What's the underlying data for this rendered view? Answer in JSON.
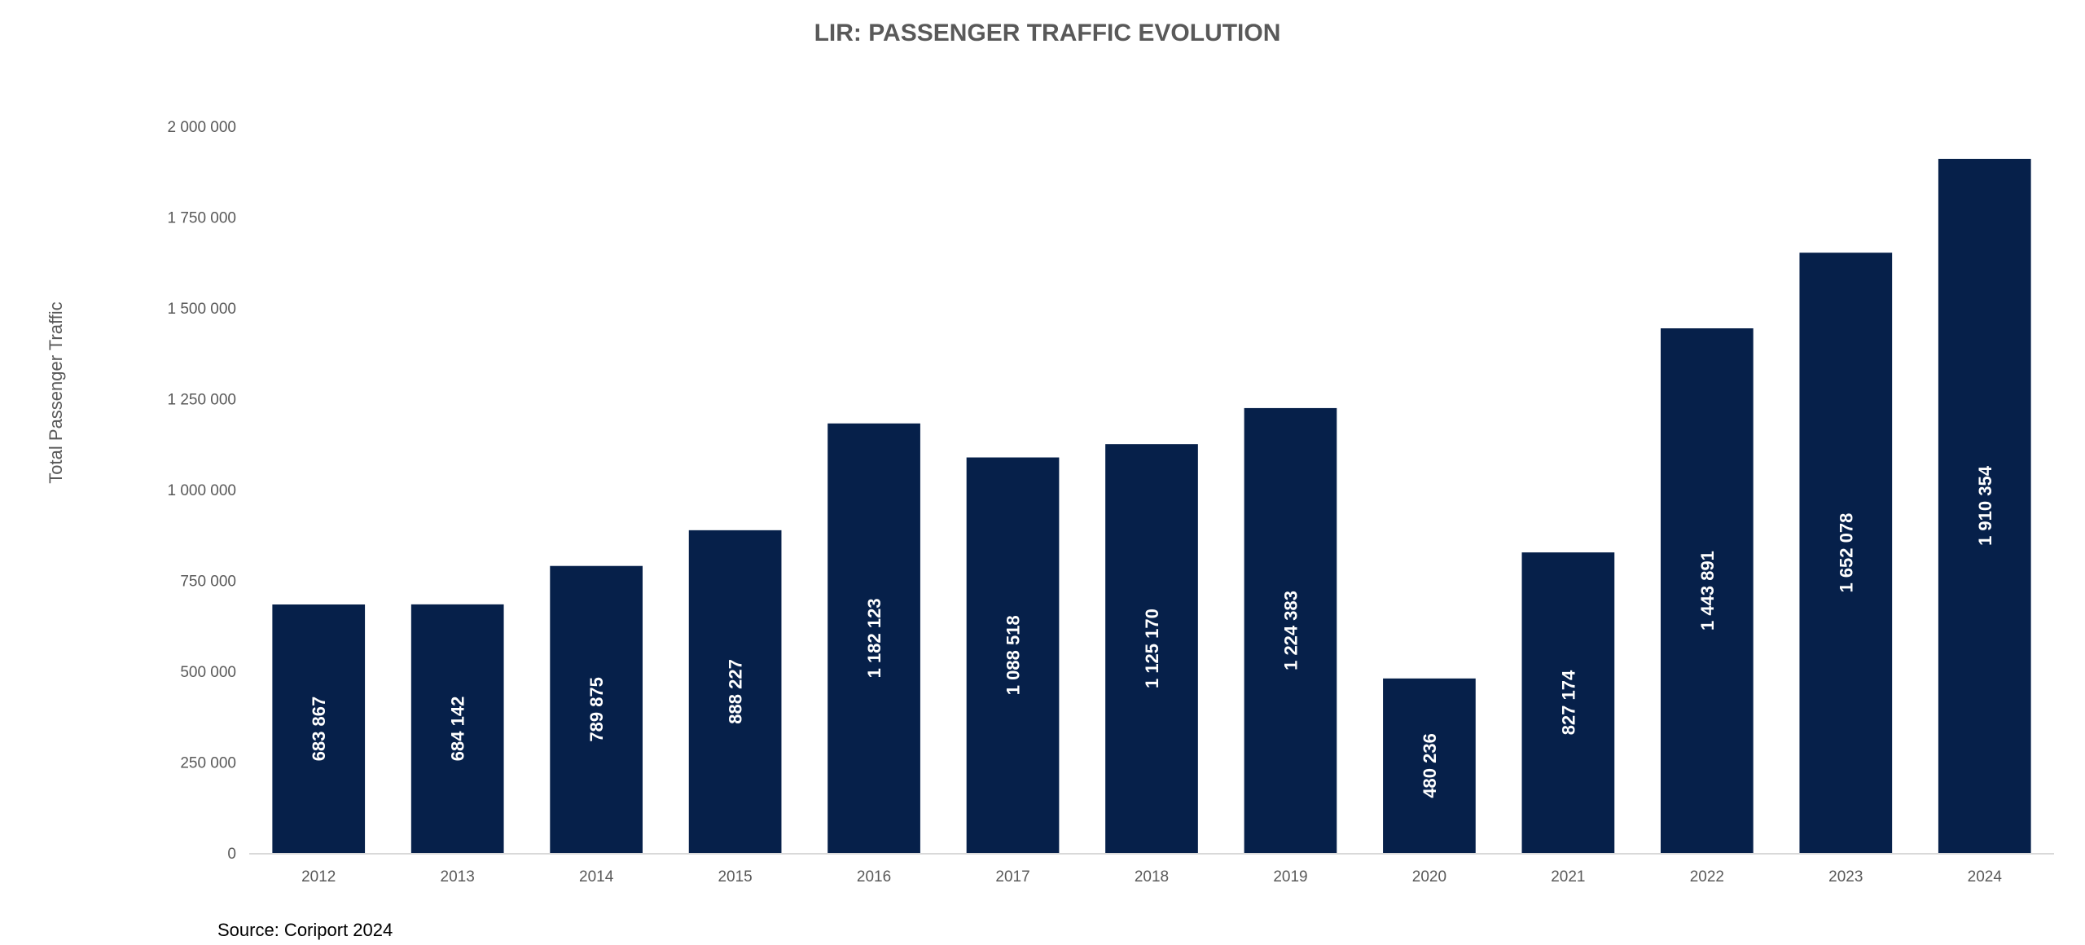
{
  "chart_data": {
    "type": "bar",
    "title": "LIR: PASSENGER TRAFFIC EVOLUTION",
    "ylabel": "Total Passenger Traffic",
    "xlabel": "",
    "categories": [
      "2012",
      "2013",
      "2014",
      "2015",
      "2016",
      "2017",
      "2018",
      "2019",
      "2020",
      "2021",
      "2022",
      "2023",
      "2024"
    ],
    "values": [
      683867,
      684142,
      789875,
      888227,
      1182123,
      1088518,
      1125170,
      1224383,
      480236,
      827174,
      1443891,
      1652078,
      1910354
    ],
    "value_labels": [
      "683 867",
      "684 142",
      "789 875",
      "888 227",
      "1 182 123",
      "1 088 518",
      "1 125 170",
      "1 224 383",
      "480 236",
      "827 174",
      "1 443 891",
      "1 652 078",
      "1 910 354"
    ],
    "ylim": [
      0,
      2000000
    ],
    "yticks": [
      0,
      250000,
      500000,
      750000,
      1000000,
      1250000,
      1500000,
      1750000,
      2000000
    ],
    "ytick_labels": [
      "0",
      "250 000",
      "500 000",
      "750 000",
      "1 000 000",
      "1 250 000",
      "1 500 000",
      "1 750 000",
      "2 000 000"
    ],
    "grid": false,
    "legend": "none",
    "bar_color": "#06204A"
  },
  "footer": {
    "source": "Source: Coriport 2024"
  }
}
